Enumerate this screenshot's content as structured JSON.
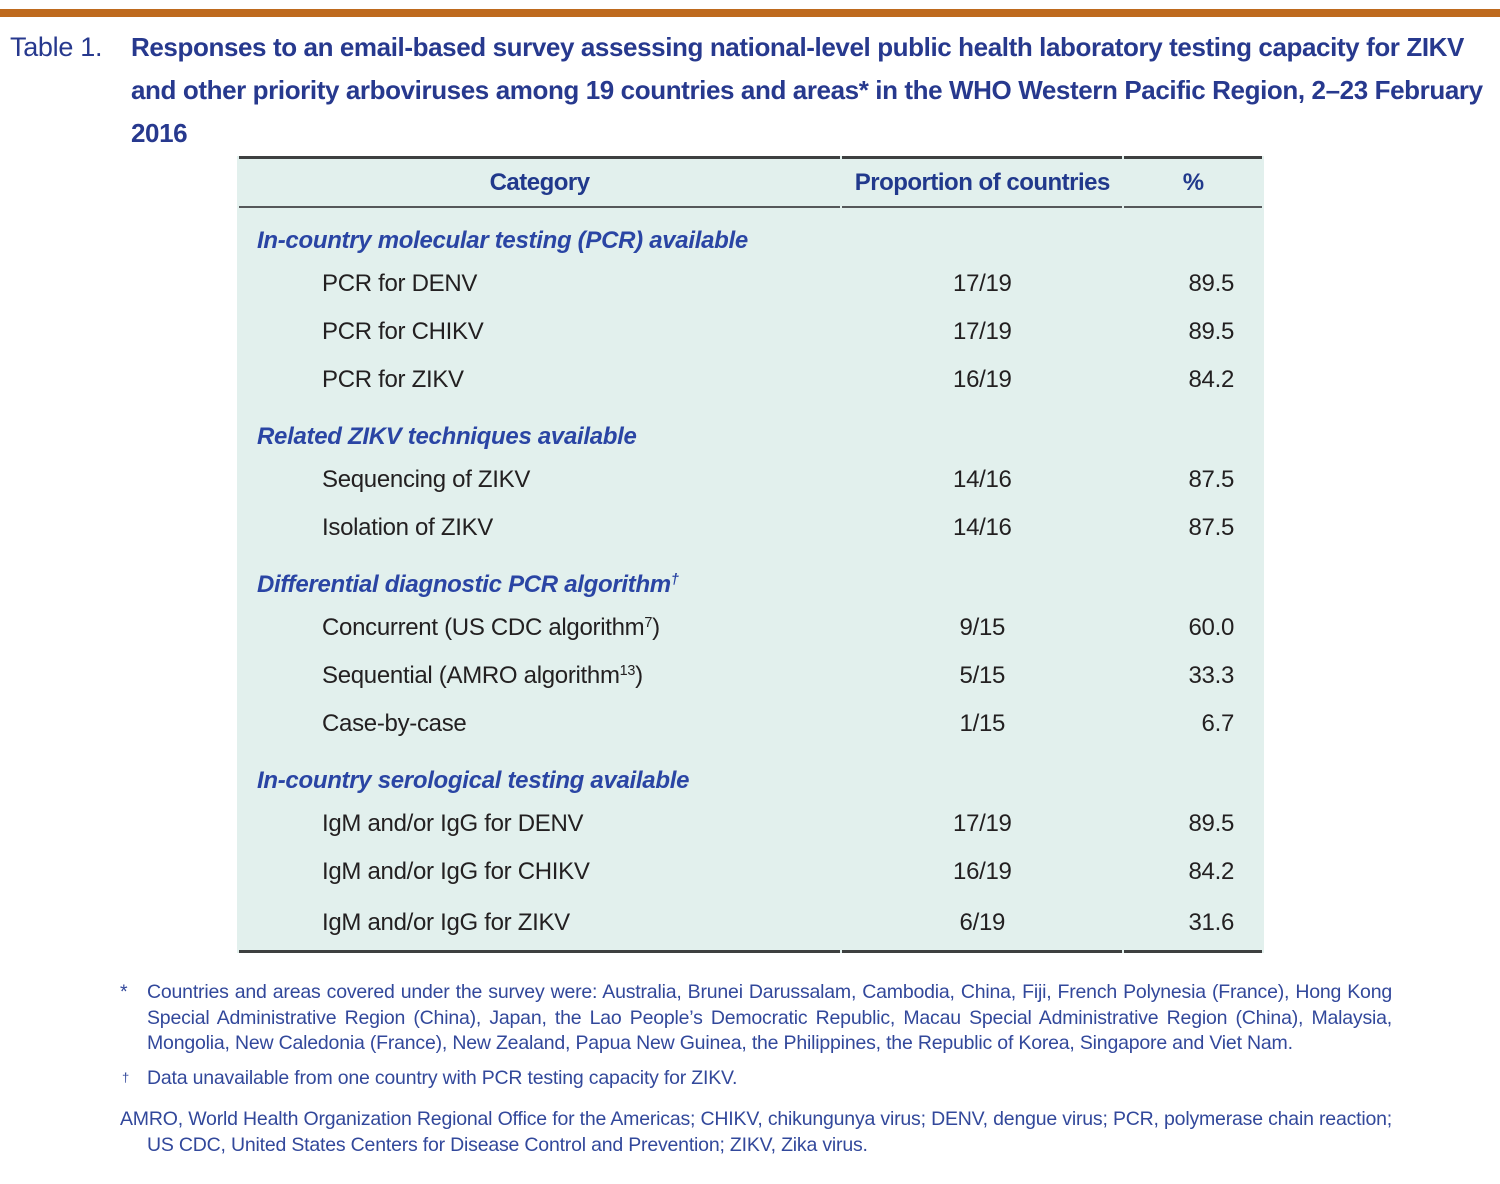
{
  "page": {
    "accent_bar_color": "#BE6A1E",
    "background_color": "#FFFFFF"
  },
  "colors": {
    "title_blue": "#27398E",
    "section_blue": "#2A45A4",
    "table_background": "#E2F0ED",
    "body_text": "#232021",
    "rule_dark": "#3E4040"
  },
  "caption": {
    "label": "Table 1.",
    "title": "Responses to an email-based survey assessing national-level public health laboratory testing capacity for ZIKV and other priority arboviruses among 19 countries and areas* in the WHO Western Pacific Region, 2–23 February 2016"
  },
  "table": {
    "columns": [
      "Category",
      "Proportion of countries",
      "%"
    ],
    "sections": [
      {
        "heading": "In-country molecular testing (PCR) available",
        "heading_sup": "",
        "rows": [
          {
            "label": "PCR for DENV",
            "sup": "",
            "suffix": "",
            "proportion": "17/19",
            "pct": "89.5"
          },
          {
            "label": "PCR for CHIKV",
            "sup": "",
            "suffix": "",
            "proportion": "17/19",
            "pct": "89.5"
          },
          {
            "label": "PCR for ZIKV",
            "sup": "",
            "suffix": "",
            "proportion": "16/19",
            "pct": "84.2"
          }
        ]
      },
      {
        "heading": "Related ZIKV techniques available",
        "heading_sup": "",
        "rows": [
          {
            "label": "Sequencing of ZIKV",
            "sup": "",
            "suffix": "",
            "proportion": "14/16",
            "pct": "87.5"
          },
          {
            "label": "Isolation of ZIKV",
            "sup": "",
            "suffix": "",
            "proportion": "14/16",
            "pct": "87.5"
          }
        ]
      },
      {
        "heading": "Differential diagnostic PCR algorithm",
        "heading_sup": "†",
        "rows": [
          {
            "label": "Concurrent (US CDC algorithm",
            "sup": "7",
            "suffix": ")",
            "proportion": "9/15",
            "pct": "60.0"
          },
          {
            "label": "Sequential (AMRO algorithm",
            "sup": "13",
            "suffix": ")",
            "proportion": "5/15",
            "pct": "33.3"
          },
          {
            "label": "Case-by-case",
            "sup": "",
            "suffix": "",
            "proportion": "1/15",
            "pct": "6.7"
          }
        ]
      },
      {
        "heading": "In-country serological testing available",
        "heading_sup": "",
        "rows": [
          {
            "label": "IgM and/or IgG for DENV",
            "sup": "",
            "suffix": "",
            "proportion": "17/19",
            "pct": "89.5"
          },
          {
            "label": "IgM and/or IgG for CHIKV",
            "sup": "",
            "suffix": "",
            "proportion": "16/19",
            "pct": "84.2"
          },
          {
            "label": "IgM and/or IgG for ZIKV",
            "sup": "",
            "suffix": "",
            "proportion": "6/19",
            "pct": "31.6"
          }
        ]
      }
    ]
  },
  "footnotes": [
    {
      "marker": "*",
      "text": "Countries and areas covered under the survey were: Australia, Brunei Darussalam, Cambodia, China, Fiji, French Polynesia (France), Hong Kong Special Administrative Region (China), Japan, the Lao People’s Democratic Republic, Macau Special Administrative Region (China), Malaysia, Mongolia, New Caledonia (France), New Zealand, Papua New Guinea, the Philippines, the Republic of Korea, Singapore and Viet Nam."
    },
    {
      "marker": "†",
      "text": "Data unavailable from one country with PCR testing capacity for ZIKV."
    },
    {
      "marker": "",
      "text": "AMRO, World Health Organization Regional Office for the Americas; CHIKV, chikungunya virus; DENV, dengue virus; PCR, polymerase chain reaction; US CDC, United States Centers for Disease Control and Prevention; ZIKV, Zika virus."
    }
  ]
}
